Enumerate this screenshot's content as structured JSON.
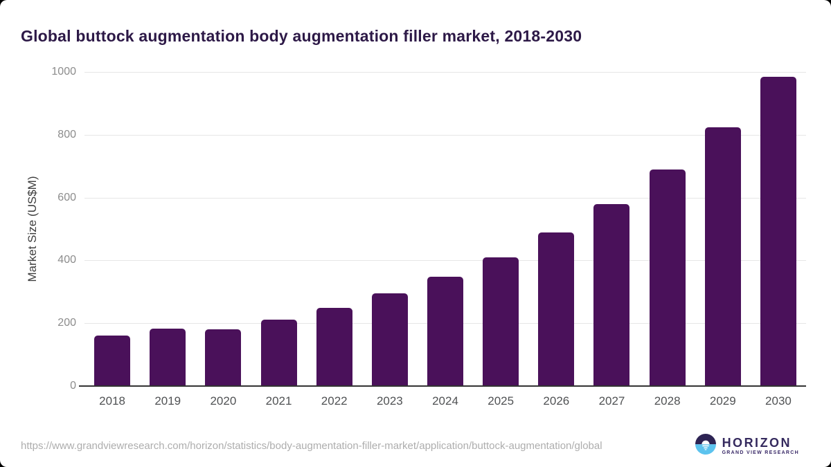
{
  "title": "Global buttock augmentation body augmentation filler market, 2018-2030",
  "footer": {
    "source_url": "https://www.grandviewresearch.com/horizon/statistics/body-augmentation-filler-market/application/buttock-augmentation/global"
  },
  "logo": {
    "title": "HORIZON",
    "subtitle": "GRAND VIEW RESEARCH"
  },
  "colors": {
    "bar": "#4a115a",
    "title_text": "#2d1947",
    "gridline": "#e6e6e6",
    "axis_line": "#333333",
    "ytick_text": "#8c8c8c",
    "xtick_text": "#505254",
    "url_text": "#adadad",
    "logo_dark": "#2d2353",
    "logo_blue": "#5cc3ee"
  },
  "chart_data": {
    "type": "bar",
    "title": "Global buttock augmentation body augmentation filler market, 2018-2030",
    "xlabel": "",
    "ylabel": "Market Size (US$M)",
    "categories": [
      "2018",
      "2019",
      "2020",
      "2021",
      "2022",
      "2023",
      "2024",
      "2025",
      "2026",
      "2027",
      "2028",
      "2029",
      "2030"
    ],
    "values": [
      160,
      183,
      180,
      211,
      249,
      296,
      348,
      410,
      489,
      580,
      690,
      823,
      985
    ],
    "ylim": [
      0,
      1000
    ],
    "yticks": [
      0,
      200,
      400,
      600,
      800,
      1000
    ],
    "grid": true,
    "legend": false,
    "bar_color": "#4a115a"
  }
}
